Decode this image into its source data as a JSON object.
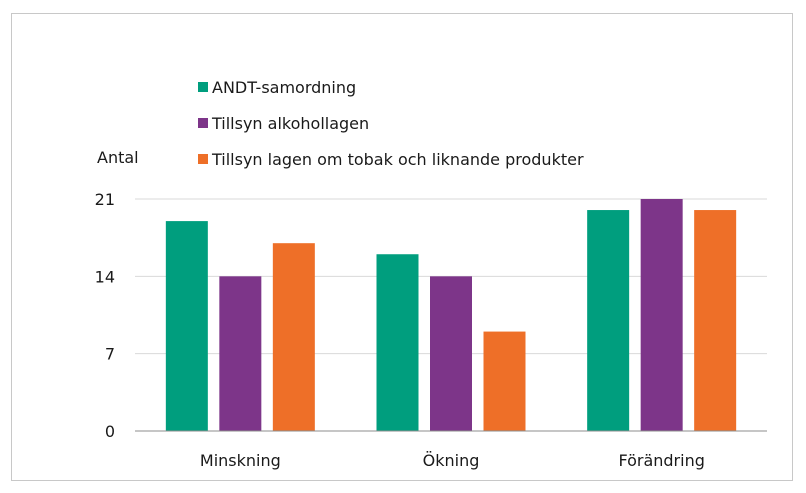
{
  "chart_data": {
    "type": "bar",
    "ylabel": "Antal",
    "categories": [
      "Minskning",
      "Ökning",
      "Förändring"
    ],
    "series": [
      {
        "name": "ANDT-samordning",
        "color": "#009e7e",
        "values": [
          19,
          16,
          20
        ]
      },
      {
        "name": "Tillsyn alkohollagen",
        "color": "#7d3589",
        "values": [
          14,
          14,
          21
        ]
      },
      {
        "name": "Tillsyn lagen om tobak och liknande produkter",
        "color": "#ee6f28",
        "values": [
          17,
          9,
          20
        ]
      }
    ],
    "ylim": [
      0,
      21
    ],
    "yticks": [
      "0",
      "7",
      "14",
      "21"
    ],
    "grid": true,
    "legend": "top"
  }
}
